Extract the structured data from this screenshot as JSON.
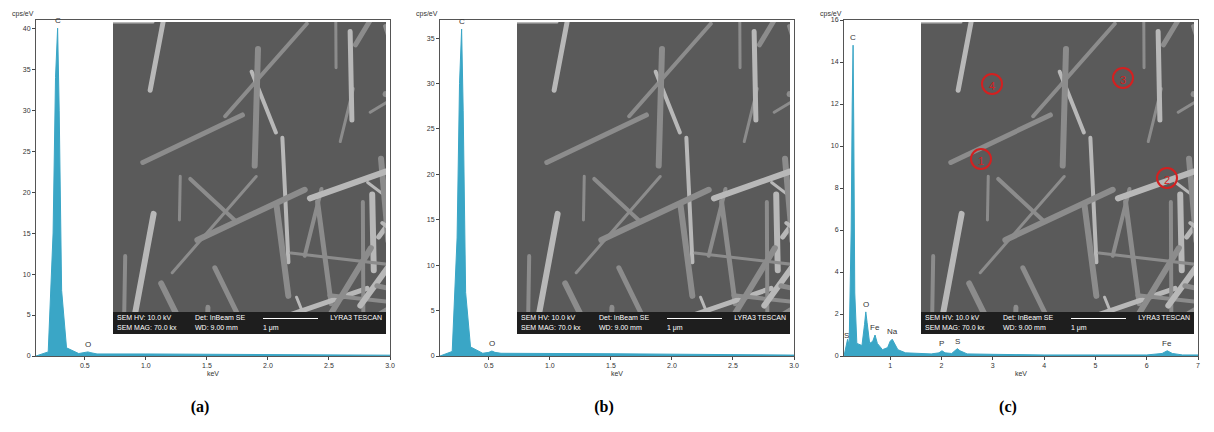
{
  "chart_data": [
    {
      "type": "area",
      "panel_label": "(a)",
      "color": "#3aa6c6",
      "xlabel": "keV",
      "ylabel": "cps/eV",
      "x": [
        0.1,
        0.2,
        0.24,
        0.26,
        0.277,
        0.29,
        0.31,
        0.35,
        0.45,
        0.5,
        0.525,
        0.55,
        0.6,
        1.0,
        1.5,
        2.0,
        2.5,
        3.0
      ],
      "values": [
        0,
        0.5,
        15,
        34,
        40,
        30,
        8,
        1,
        0.3,
        0.4,
        0.5,
        0.4,
        0.25,
        0.25,
        0.2,
        0.15,
        0.1,
        0.1
      ],
      "xlim": [
        0.1,
        3.0
      ],
      "xticks": [
        0.5,
        {
          "value": 1,
          "label": "1.0"
        },
        1.5,
        {
          "value": 2,
          "label": "2.0"
        },
        2.5,
        {
          "value": 3,
          "label": "3.0"
        }
      ],
      "ylim": [
        0,
        41
      ],
      "yticks": [
        0,
        5,
        10,
        15,
        20,
        25,
        30,
        35,
        40
      ],
      "annotations": [
        {
          "text": "C",
          "x": 0.277,
          "y": 40
        },
        {
          "text": "O",
          "x": 0.525,
          "y": 0.5
        }
      ],
      "inset": {
        "hv": "SEM HV: 10.0 kV",
        "detector": "Det: InBeam SE",
        "brand": "LYRA3 TESCAN",
        "mag": "SEM MAG: 70.0 kx",
        "wd": "WD: 9.00 mm",
        "scale": "1 μm",
        "markers": []
      }
    },
    {
      "type": "area",
      "panel_label": "(b)",
      "color": "#3aa6c6",
      "xlabel": "keV",
      "ylabel": "cps/eV",
      "x": [
        0.1,
        0.2,
        0.24,
        0.26,
        0.277,
        0.29,
        0.31,
        0.35,
        0.45,
        0.5,
        0.525,
        0.55,
        0.6,
        1.0,
        1.5,
        2.0,
        2.5,
        3.0
      ],
      "values": [
        0,
        0.5,
        13,
        30,
        36,
        27,
        7,
        1,
        0.3,
        0.4,
        0.55,
        0.4,
        0.3,
        0.3,
        0.25,
        0.2,
        0.15,
        0.1
      ],
      "xlim": [
        0.1,
        3.0
      ],
      "xticks": [
        0.5,
        {
          "value": 1,
          "label": "1.0"
        },
        1.5,
        {
          "value": 2,
          "label": "2.0"
        },
        2.5,
        {
          "value": 3,
          "label": "3.0"
        }
      ],
      "ylim": [
        0,
        37
      ],
      "yticks": [
        0,
        5,
        10,
        15,
        20,
        25,
        30,
        35
      ],
      "annotations": [
        {
          "text": "C",
          "x": 0.277,
          "y": 36
        },
        {
          "text": "O",
          "x": 0.525,
          "y": 0.55
        }
      ],
      "inset": {
        "hv": "SEM HV: 10.0 kV",
        "detector": "Det: InBeam SE",
        "brand": "LYRA3 TESCAN",
        "mag": "SEM MAG: 70.0 kx",
        "wd": "WD: 9.00 mm",
        "scale": "1 μm",
        "markers": []
      }
    },
    {
      "type": "area",
      "panel_label": "(c)",
      "color": "#3aa6c6",
      "xlabel": "keV",
      "ylabel": "cps/eV",
      "x": [
        0.1,
        0.15,
        0.17,
        0.2,
        0.24,
        0.26,
        0.277,
        0.29,
        0.31,
        0.35,
        0.45,
        0.5,
        0.525,
        0.55,
        0.6,
        0.66,
        0.705,
        0.75,
        0.85,
        0.95,
        1.0,
        1.04,
        1.08,
        1.15,
        1.3,
        1.5,
        1.8,
        1.95,
        2.01,
        2.07,
        2.2,
        2.26,
        2.31,
        2.36,
        2.5,
        3.0,
        3.5,
        4.0,
        5.0,
        6.0,
        6.3,
        6.4,
        6.5,
        6.7,
        7.0
      ],
      "values": [
        0,
        0.6,
        0.8,
        0.5,
        6,
        12,
        14.8,
        11,
        3,
        0.6,
        0.5,
        1.5,
        2.1,
        1.6,
        0.6,
        0.7,
        1.0,
        0.6,
        0.3,
        0.4,
        0.7,
        0.8,
        0.6,
        0.3,
        0.15,
        0.12,
        0.1,
        0.15,
        0.25,
        0.15,
        0.12,
        0.25,
        0.35,
        0.25,
        0.1,
        0.08,
        0.06,
        0.05,
        0.05,
        0.05,
        0.12,
        0.25,
        0.12,
        0.05,
        0.05
      ],
      "xlim": [
        0.1,
        7.0
      ],
      "xticks": [
        1,
        2,
        3,
        4,
        5,
        6,
        7
      ],
      "ylim": [
        0,
        16
      ],
      "yticks": [
        0,
        2,
        4,
        6,
        8,
        10,
        12,
        14,
        16
      ],
      "annotations": [
        {
          "text": "S",
          "x": 0.15,
          "y": 0.6
        },
        {
          "text": "C",
          "x": 0.277,
          "y": 14.8
        },
        {
          "text": "O",
          "x": 0.525,
          "y": 2.1
        },
        {
          "text": "Fe",
          "x": 0.705,
          "y": 1.0
        },
        {
          "text": "Na",
          "x": 1.04,
          "y": 0.8
        },
        {
          "text": "P",
          "x": 2.01,
          "y": 0.25
        },
        {
          "text": "S",
          "x": 2.31,
          "y": 0.35
        },
        {
          "text": "Fe",
          "x": 6.4,
          "y": 0.25
        }
      ],
      "inset": {
        "hv": "SEM HV: 10.0 kV",
        "detector": "Det: InBeam SE",
        "brand": "LYRA3 TESCAN",
        "mag": "SEM MAG: 70.0 kx",
        "wd": "WD: 9.00 mm",
        "scale": "1 μm",
        "markers": [
          "1",
          "2",
          "3",
          "4"
        ]
      }
    }
  ]
}
